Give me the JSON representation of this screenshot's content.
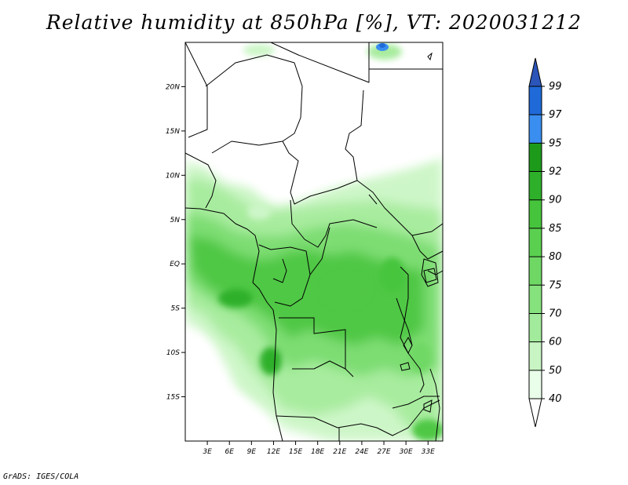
{
  "title": "Relative humidity at 850hPa [%], VT: 2020031212",
  "credit": "GrADS: IGES/COLA",
  "chart_data": {
    "type": "heatmap",
    "variable": "Relative humidity at 850hPa",
    "units": "%",
    "valid_time": "2020031212",
    "xlim": [
      0,
      35
    ],
    "ylim": [
      -20,
      25
    ],
    "x_ticks": [
      {
        "value": 3,
        "label": "3E"
      },
      {
        "value": 6,
        "label": "6E"
      },
      {
        "value": 9,
        "label": "9E"
      },
      {
        "value": 12,
        "label": "12E"
      },
      {
        "value": 15,
        "label": "15E"
      },
      {
        "value": 18,
        "label": "18E"
      },
      {
        "value": 21,
        "label": "21E"
      },
      {
        "value": 24,
        "label": "24E"
      },
      {
        "value": 27,
        "label": "27E"
      },
      {
        "value": 30,
        "label": "30E"
      },
      {
        "value": 33,
        "label": "33E"
      }
    ],
    "y_ticks": [
      {
        "value": 20,
        "label": "20N"
      },
      {
        "value": 15,
        "label": "15N"
      },
      {
        "value": 10,
        "label": "10N"
      },
      {
        "value": 5,
        "label": "5N"
      },
      {
        "value": 0,
        "label": "EQ"
      },
      {
        "value": -5,
        "label": "5S"
      },
      {
        "value": -10,
        "label": "10S"
      },
      {
        "value": -15,
        "label": "15S"
      }
    ],
    "colorbar": {
      "levels": [
        40,
        50,
        60,
        70,
        75,
        80,
        85,
        90,
        92,
        95,
        97,
        99
      ],
      "colors": [
        "#eaffea",
        "#c8f5c3",
        "#a3eb9c",
        "#86e27d",
        "#6fd865",
        "#5bd050",
        "#46c53c",
        "#2fb02a",
        "#1e9a1b",
        "#3a8ef0",
        "#1f6ad8",
        "#2b55b8"
      ]
    }
  }
}
